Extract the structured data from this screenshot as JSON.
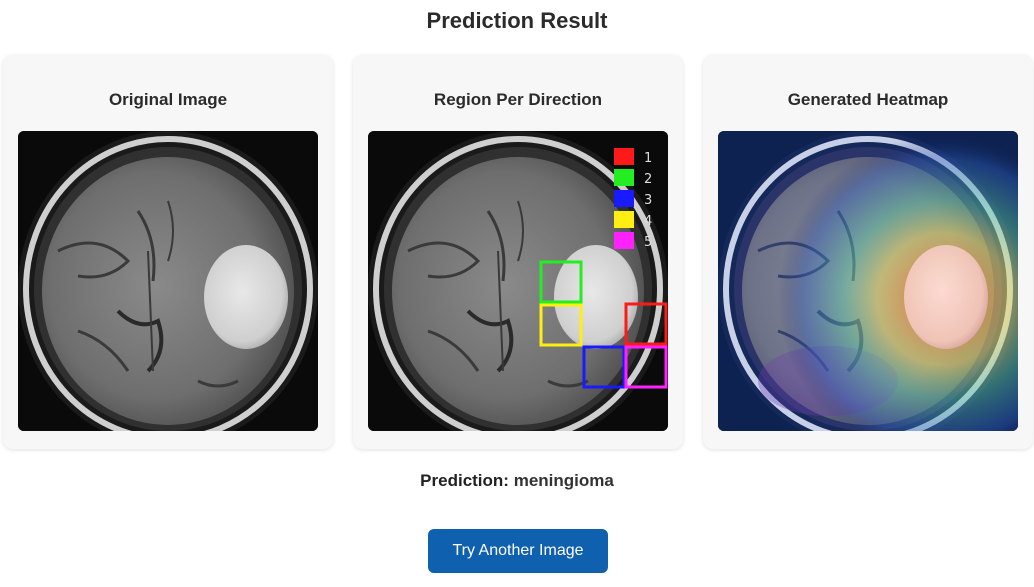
{
  "page": {
    "title": "Prediction Result"
  },
  "cards": [
    {
      "title": "Original Image",
      "image_name": "brain-mri-scan"
    },
    {
      "title": "Region Per Direction",
      "image_name": "brain-mri-region-overlay"
    },
    {
      "title": "Generated Heatmap",
      "image_name": "brain-mri-heatmap"
    }
  ],
  "region_legend": [
    {
      "label": "1",
      "color": "#ff1a1a"
    },
    {
      "label": "2",
      "color": "#22ee22"
    },
    {
      "label": "3",
      "color": "#1a1aff"
    },
    {
      "label": "4",
      "color": "#ffee11"
    },
    {
      "label": "5",
      "color": "#ff22ff"
    }
  ],
  "prediction": {
    "label": "Prediction:",
    "value": "meningioma"
  },
  "actions": {
    "try_again_label": "Try Another Image"
  },
  "colors": {
    "accent": "#1060b0",
    "card_background": "#f7f7f7"
  }
}
